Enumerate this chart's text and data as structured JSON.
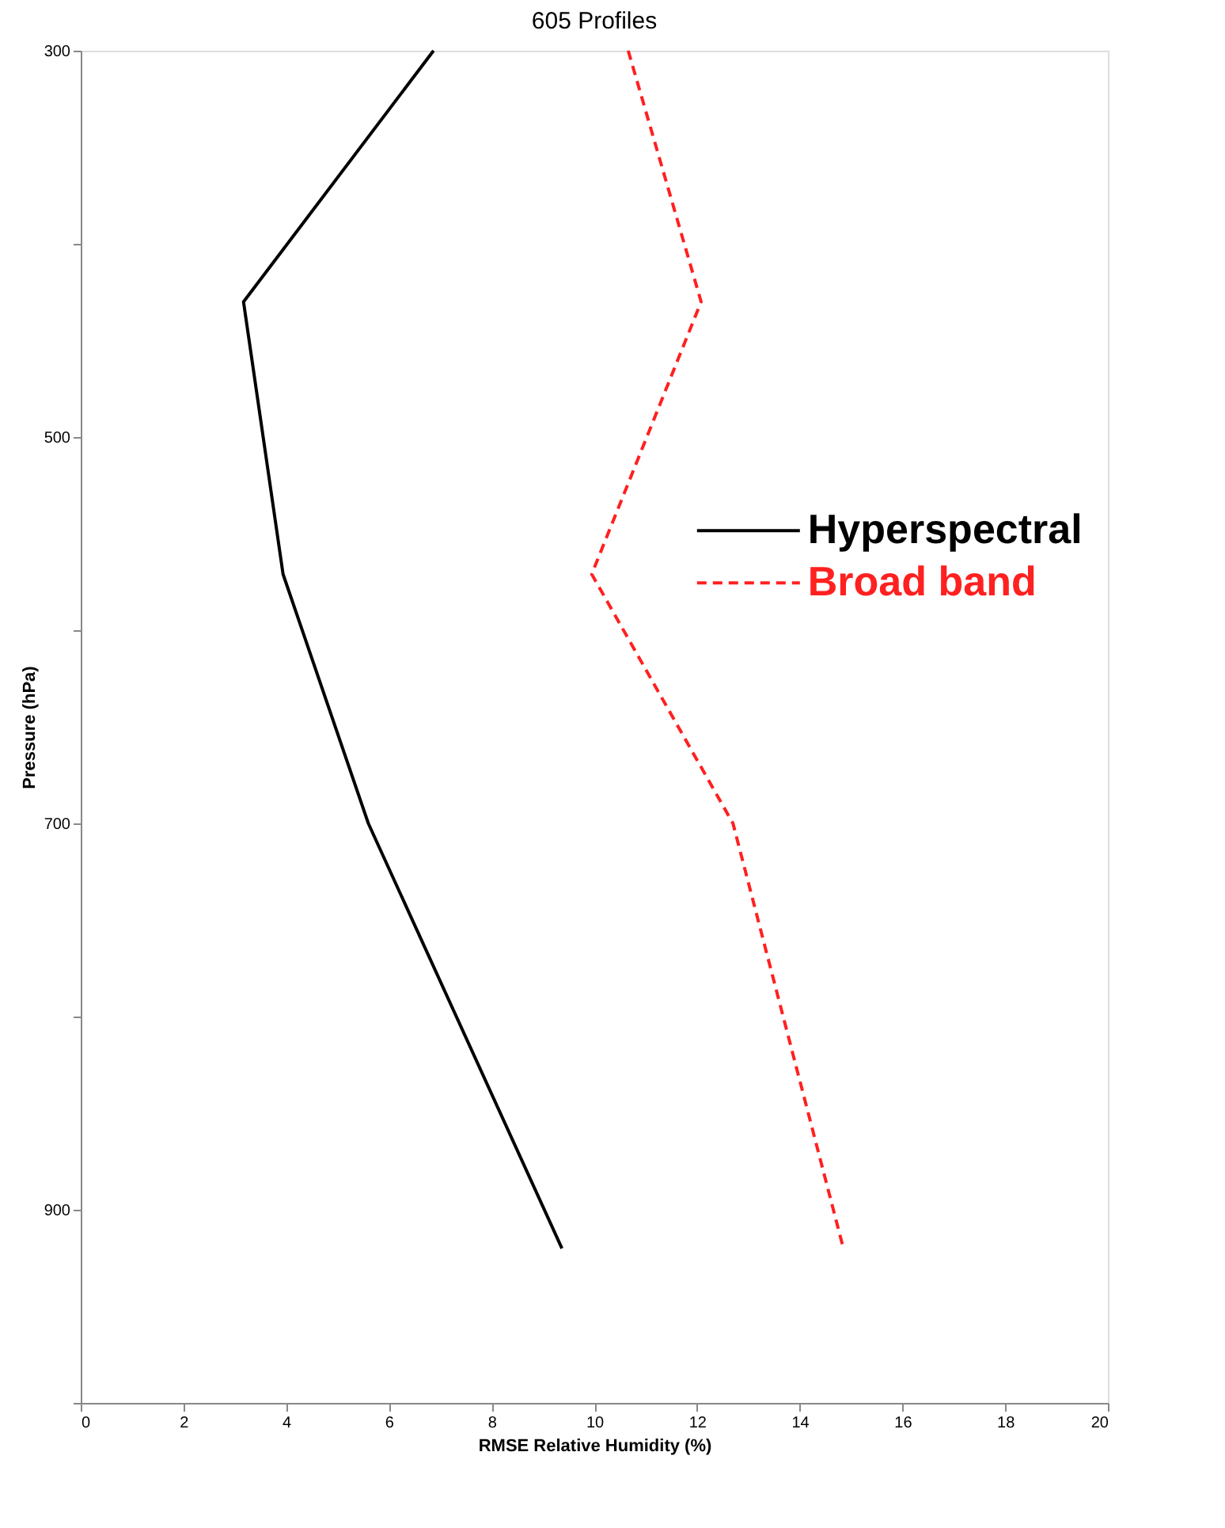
{
  "chart_data": {
    "type": "line",
    "title": "605 Profiles",
    "xlabel": "RMSE Relative Humidity (%)",
    "ylabel": "Pressure (hPa)",
    "series": [
      {
        "name": "Hyperspectral",
        "color": "#000000",
        "line_style": "solid",
        "x": [
          6.87,
          3.17,
          3.94,
          5.6,
          9.37
        ],
        "values": [
          300,
          430,
          571,
          700,
          920
        ]
      },
      {
        "name": "Broad band",
        "color": "#ff2020",
        "line_style": "dashed",
        "x": [
          10.66,
          12.08,
          9.95,
          12.7,
          14.85
        ],
        "values": [
          300,
          430,
          571,
          700,
          920
        ]
      }
    ],
    "xlim": [
      0,
      20
    ],
    "xticks": [
      0,
      2,
      4,
      6,
      8,
      10,
      12,
      14,
      16,
      18,
      20
    ],
    "ylim": [
      1000,
      300
    ],
    "yticks": [
      300,
      {
        "value": 400,
        "label": null
      },
      500,
      {
        "value": 600,
        "label": null
      },
      700,
      {
        "value": 800,
        "label": null
      },
      900,
      {
        "value": 1000,
        "label": null
      }
    ],
    "grid": false,
    "legend": "right",
    "marker": "none"
  }
}
